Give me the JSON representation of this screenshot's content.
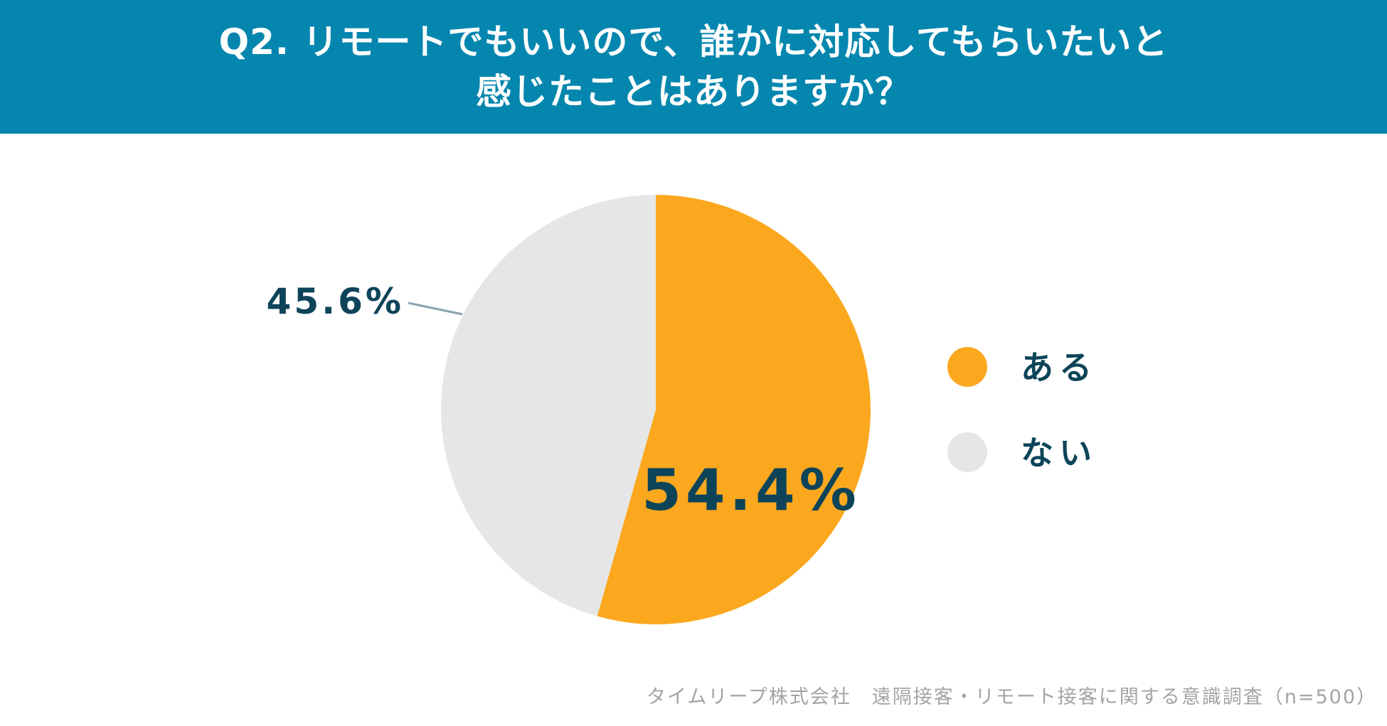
{
  "chart_data": {
    "type": "pie",
    "title_lines": [
      "Q2. リモートでもいいので、誰かに対応してもらいたいと",
      "感じたことはありますか？"
    ],
    "categories": [
      "ある",
      "ない"
    ],
    "values": [
      54.4,
      45.6
    ],
    "value_labels": [
      "54.4%",
      "45.6%"
    ],
    "colors": [
      "#FBA81F",
      "#E6E6E6"
    ],
    "legend_position": "right",
    "source": "タイムリープ株式会社　遠隔接客・リモート接客に関する意識調査（n=500）"
  },
  "theme": {
    "header_bg": "#0586AE",
    "label_color": "#0D4459",
    "leader_line_color": "#8AA3B0"
  }
}
